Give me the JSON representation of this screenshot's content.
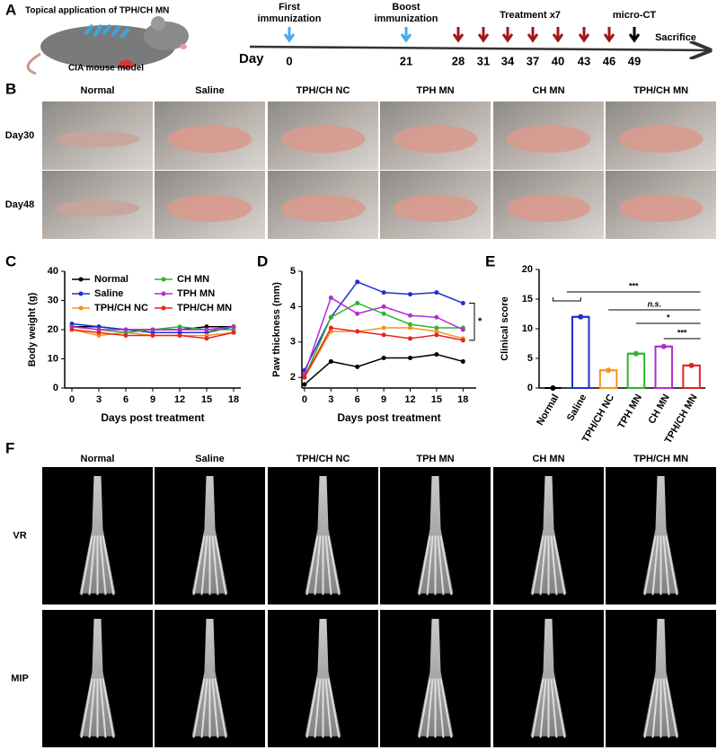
{
  "panel_a": {
    "label": "A",
    "model_title": "Topical application of  TPH/CH MN",
    "model_caption": "CIA mouse model",
    "first_immunization": [
      "First",
      "immunization"
    ],
    "boost_immunization": [
      "Boost",
      "immunization"
    ],
    "treatment": "Treatment x7",
    "micro_ct": "micro-CT",
    "sacrifice": "Sacrifice",
    "day_label": "Day",
    "days": [
      0,
      21,
      28,
      31,
      34,
      37,
      40,
      43,
      46,
      49
    ]
  },
  "panel_b": {
    "label": "B",
    "columns": [
      "Normal",
      "Saline",
      "TPH/CH NC",
      "TPH MN",
      "CH MN",
      "TPH/CH MN"
    ],
    "rows": [
      "Day30",
      "Day48"
    ]
  },
  "chart_data": [
    {
      "type": "line",
      "panel": "C",
      "ylabel": "Body weight (g)",
      "xlabel": "Days post treatment",
      "x": [
        0,
        3,
        6,
        9,
        12,
        15,
        18
      ],
      "xlim": [
        -0.8,
        18.8
      ],
      "xticks": [
        0,
        3,
        6,
        9,
        12,
        15,
        18
      ],
      "ylim": [
        0,
        40
      ],
      "yticks": [
        0,
        10,
        20,
        30,
        40
      ],
      "legend": "top",
      "series": [
        {
          "name": "Normal",
          "color": "#000000",
          "values": [
            21,
            21,
            20,
            20,
            20,
            21,
            21
          ]
        },
        {
          "name": "Saline",
          "color": "#1f2fd1",
          "values": [
            22,
            21,
            20,
            19,
            19,
            19,
            21
          ]
        },
        {
          "name": "TPH/CH NC",
          "color": "#f7941d",
          "values": [
            20,
            18,
            19,
            18,
            18,
            18,
            19
          ]
        },
        {
          "name": "CH MN",
          "color": "#2db52d",
          "values": [
            21,
            20,
            19,
            20,
            21,
            20,
            20
          ]
        },
        {
          "name": "TPH MN",
          "color": "#b02fd1",
          "values": [
            21,
            20,
            20,
            20,
            20,
            20,
            21
          ]
        },
        {
          "name": "TPH/CH MN",
          "color": "#e8231f",
          "values": [
            20,
            19,
            18,
            18,
            18,
            17,
            19
          ]
        }
      ]
    },
    {
      "type": "line",
      "panel": "D",
      "ylabel": "Paw thickness (mm)",
      "xlabel": "Days post treatment",
      "x": [
        0,
        3,
        6,
        9,
        12,
        15,
        18
      ],
      "xlim": [
        -0.3,
        19.5
      ],
      "xticks": [
        0,
        3,
        6,
        9,
        12,
        15,
        18
      ],
      "ylim": [
        1.7,
        5
      ],
      "yticks": [
        2,
        3,
        4,
        5
      ],
      "annotations": [
        "*"
      ],
      "series": [
        {
          "color": "#000000",
          "values": [
            1.8,
            2.45,
            2.3,
            2.55,
            2.55,
            2.65,
            2.45
          ]
        },
        {
          "color": "#1f2fd1",
          "values": [
            2.2,
            3.7,
            4.7,
            4.4,
            4.35,
            4.4,
            4.1
          ]
        },
        {
          "color": "#f7941d",
          "values": [
            2.0,
            3.3,
            3.3,
            3.4,
            3.4,
            3.3,
            3.1
          ]
        },
        {
          "color": "#2db52d",
          "values": [
            2.0,
            3.7,
            4.1,
            3.8,
            3.5,
            3.4,
            3.4
          ]
        },
        {
          "color": "#b02fd1",
          "values": [
            2.1,
            4.25,
            3.8,
            4.0,
            3.75,
            3.7,
            3.35
          ]
        },
        {
          "color": "#e8231f",
          "values": [
            2.0,
            3.4,
            3.3,
            3.2,
            3.1,
            3.2,
            3.05
          ]
        }
      ]
    },
    {
      "type": "bar",
      "panel": "E",
      "ylabel": "Clinical score",
      "categories": [
        "Normal",
        "Saline",
        "TPH/CH NC",
        "TPH MN",
        "CH MN",
        "TPH/CH MN"
      ],
      "values": [
        0,
        12,
        3,
        5.8,
        7,
        3.8
      ],
      "colors": [
        "#000000",
        "#1f2fd1",
        "#f7941d",
        "#2db52d",
        "#b02fd1",
        "#e8231f"
      ],
      "ylim": [
        0,
        20
      ],
      "yticks": [
        0,
        5,
        10,
        15,
        20
      ],
      "annotations": [
        "***",
        "n.s.",
        "*",
        "***"
      ]
    }
  ],
  "panel_f": {
    "label": "F",
    "columns": [
      "Normal",
      "Saline",
      "TPH/CH NC",
      "TPH MN",
      "CH MN",
      "TPH/CH MN"
    ],
    "rows": [
      "VR",
      "MIP"
    ]
  }
}
